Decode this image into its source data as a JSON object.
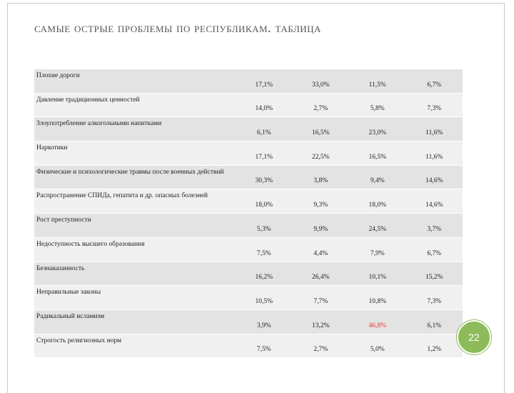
{
  "header": {
    "title": "Самые острые проблемы по республикам. таблица"
  },
  "table": {
    "rows": [
      [
        "Плохие дороги",
        "17,1%",
        "33,0%",
        "11,5%",
        "6,7%"
      ],
      [
        "Давление традиционных ценностей",
        "14,0%",
        "2,7%",
        "5,8%",
        "7,3%"
      ],
      [
        "Злоупотребление алкогольными напитками",
        "6,1%",
        "16,5%",
        "23,0%",
        "11,6%"
      ],
      [
        "Наркотики",
        "17,1%",
        "22,5%",
        "16,5%",
        "11,6%"
      ],
      [
        "Физические и психологические травмы после военных действий",
        "30,3%",
        "3,8%",
        "9,4%",
        "14,6%"
      ],
      [
        "Распространение СПИДа, гепатита и др. опасных болезней",
        "18,0%",
        "9,3%",
        "18,0%",
        "14,6%"
      ],
      [
        "Рост преступности",
        "5,3%",
        "9,9%",
        "24,5%",
        "3,7%"
      ],
      [
        "Недоступность высшего образования",
        "7,5%",
        "4,4%",
        "7,9%",
        "6,7%"
      ],
      [
        "Безнаказанность",
        "16,2%",
        "26,4%",
        "10,1%",
        "15,2%"
      ],
      [
        "Неправильные законы",
        "10,5%",
        "7,7%",
        "10,8%",
        "7,3%"
      ],
      [
        "Радикальный исламизм",
        "3,9%",
        "13,2%",
        "46,8%",
        "6,1%"
      ],
      [
        "Строгость религиозных норм",
        "7,5%",
        "2,7%",
        "5,0%",
        "1,2%"
      ]
    ],
    "highlight": {
      "row": 10,
      "col": 3,
      "color": "#e8322b"
    }
  },
  "footer": {
    "page_number": "22"
  }
}
